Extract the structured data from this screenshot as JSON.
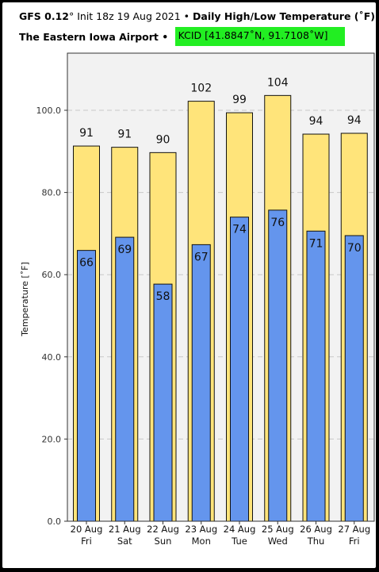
{
  "header": {
    "model": "GFS 0.12",
    "init": "° Init 18z 19 Aug 2021",
    "sep1": " • ",
    "title": "Daily High/Low Temperature (˚F)",
    "location": "The Eastern Iowa Airport",
    "sep2": " • ",
    "station": "KCID [41.8847˚N, 91.7108˚W]"
  },
  "colors": {
    "high": "#ffe47a",
    "low": "#6495ed",
    "station_box": "#22ee22",
    "plot_bg": "#f2f2f2"
  },
  "chart_data": {
    "type": "bar",
    "ylabel": "Temperature [˚F]",
    "ylim": [
      0,
      115
    ],
    "yticks": [
      0,
      20,
      40,
      60,
      80,
      100
    ],
    "ytick_labels": [
      "0.0",
      "20.0",
      "40.0",
      "60.0",
      "80.0",
      "100.0"
    ],
    "grid": true,
    "categories": [
      {
        "date": "20 Aug",
        "day": "Fri"
      },
      {
        "date": "21 Aug",
        "day": "Sat"
      },
      {
        "date": "22 Aug",
        "day": "Sun"
      },
      {
        "date": "23 Aug",
        "day": "Mon"
      },
      {
        "date": "24 Aug",
        "day": "Tue"
      },
      {
        "date": "25 Aug",
        "day": "Wed"
      },
      {
        "date": "26 Aug",
        "day": "Thu"
      },
      {
        "date": "27 Aug",
        "day": "Fri"
      }
    ],
    "series": [
      {
        "key": "high",
        "values_exact": [
          91.3,
          91.0,
          89.7,
          102.2,
          99.4,
          103.6,
          94.2,
          94.4
        ],
        "labels": [
          "91",
          "91",
          "90",
          "102",
          "99",
          "104",
          "94",
          "94"
        ]
      },
      {
        "key": "low",
        "values_exact": [
          65.9,
          69.1,
          57.7,
          67.3,
          74.0,
          75.7,
          70.6,
          69.5
        ],
        "labels": [
          "66",
          "69",
          "58",
          "67",
          "74",
          "76",
          "71",
          "70"
        ]
      }
    ]
  }
}
